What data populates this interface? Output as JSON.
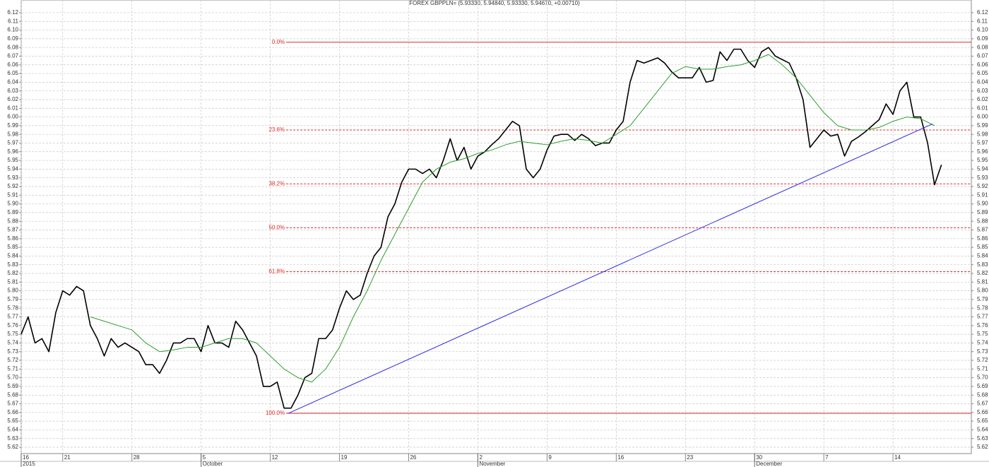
{
  "chart_data": {
    "type": "line",
    "title": "FOREX GBPPLN= (5.93330, 5.94840, 5.93330, 5.94670, +0.00710)",
    "xlim": [
      0,
      68.66
    ],
    "ylim": [
      5.6127,
      6.1346
    ],
    "grid": true,
    "xticks": [
      {
        "value": 0,
        "label": "16"
      },
      {
        "value": 3,
        "label": "21"
      },
      {
        "value": 8,
        "label": "28"
      },
      {
        "value": 13,
        "label": "5"
      },
      {
        "value": 18,
        "label": "12"
      },
      {
        "value": 23,
        "label": "19"
      },
      {
        "value": 28,
        "label": "26"
      },
      {
        "value": 33,
        "label": "2"
      },
      {
        "value": 38,
        "label": "9"
      },
      {
        "value": 43,
        "label": "16"
      },
      {
        "value": 48,
        "label": "23"
      },
      {
        "value": 53,
        "label": "30"
      },
      {
        "value": 58,
        "label": "7"
      },
      {
        "value": 63,
        "label": "14"
      }
    ],
    "xmonths": [
      {
        "value": 0,
        "label": "2015"
      },
      {
        "value": 13,
        "label": "October"
      },
      {
        "value": 33,
        "label": "November"
      },
      {
        "value": 53,
        "label": "December"
      }
    ],
    "yticks": [
      5.62,
      5.63,
      5.64,
      5.65,
      5.66,
      5.67,
      5.68,
      5.69,
      {
        "value": 5.7,
        "label": "5.70"
      },
      5.71,
      5.72,
      5.73,
      5.74,
      5.75,
      5.76,
      5.77,
      5.78,
      5.79,
      {
        "value": 5.8,
        "label": "5.80"
      },
      5.81,
      5.82,
      5.83,
      5.84,
      5.85,
      5.86,
      5.87,
      5.88,
      5.89,
      {
        "value": 5.9,
        "label": "5.90"
      },
      5.91,
      5.92,
      5.93,
      5.94,
      5.95,
      5.96,
      5.97,
      5.98,
      5.99,
      {
        "value": 6.0,
        "label": "6.00"
      },
      6.01,
      6.02,
      6.03,
      6.04,
      6.05,
      6.06,
      6.07,
      6.08,
      6.09,
      {
        "value": 6.1,
        "label": "6.10"
      },
      6.11,
      6.12
    ],
    "series": [
      {
        "color": "#000000",
        "x": [
          0,
          0.5,
          1,
          1.5,
          2,
          2.5,
          3,
          3.5,
          4,
          4.5,
          5,
          5.5,
          6,
          6.5,
          7,
          7.5,
          8,
          8.5,
          9,
          9.5,
          10,
          10.5,
          11,
          11.5,
          12,
          12.5,
          13,
          13.5,
          14,
          14.5,
          15,
          15.5,
          16,
          16.5,
          17,
          17.5,
          18,
          18.5,
          19,
          19.5,
          20,
          20.5,
          21,
          21.5,
          22,
          22.5,
          23,
          23.5,
          24,
          24.5,
          25,
          25.5,
          26,
          26.5,
          27,
          27.5,
          28,
          28.5,
          29,
          29.5,
          30,
          30.5,
          31,
          31.5,
          32,
          32.5,
          33,
          33.5,
          34,
          34.5,
          35,
          35.5,
          36,
          36.5,
          37,
          37.5,
          38,
          38.5,
          39,
          39.5,
          40,
          40.5,
          41,
          41.5,
          42,
          42.5,
          43,
          43.5,
          44,
          44.5,
          45,
          45.5,
          46,
          46.5,
          47,
          47.5,
          48,
          48.5,
          49,
          49.5,
          50,
          50.5,
          51,
          51.5,
          52,
          52.5,
          53,
          53.5,
          54,
          54.5,
          55,
          55.5,
          56,
          56.5,
          57,
          57.5,
          58,
          58.5,
          59,
          59.5,
          60,
          60.5,
          61,
          61.5,
          62,
          62.5,
          63,
          63.5,
          64,
          64.5,
          65,
          65.5,
          66,
          66.5
        ],
        "values": [
          5.75,
          5.77,
          5.74,
          5.745,
          5.73,
          5.775,
          5.8,
          5.795,
          5.805,
          5.8,
          5.76,
          5.745,
          5.725,
          5.745,
          5.735,
          5.74,
          5.735,
          5.73,
          5.715,
          5.715,
          5.705,
          5.72,
          5.74,
          5.74,
          5.745,
          5.745,
          5.73,
          5.76,
          5.74,
          5.74,
          5.735,
          5.765,
          5.755,
          5.74,
          5.725,
          5.69,
          5.69,
          5.695,
          5.665,
          5.665,
          5.68,
          5.7,
          5.705,
          5.745,
          5.745,
          5.755,
          5.78,
          5.8,
          5.79,
          5.795,
          5.82,
          5.84,
          5.85,
          5.885,
          5.9,
          5.925,
          5.94,
          5.94,
          5.935,
          5.94,
          5.93,
          5.95,
          5.975,
          5.95,
          5.965,
          5.94,
          5.955,
          5.96,
          5.968,
          5.975,
          5.985,
          5.995,
          5.99,
          5.94,
          5.93,
          5.94,
          5.962,
          5.978,
          5.98,
          5.98,
          5.973,
          5.98,
          5.975,
          5.967,
          5.97,
          5.97,
          5.985,
          5.995,
          6.04,
          6.065,
          6.062,
          6.065,
          6.068,
          6.062,
          6.052,
          6.045,
          6.045,
          6.045,
          6.057,
          6.04,
          6.042,
          6.075,
          6.065,
          6.078,
          6.078,
          6.065,
          6.057,
          6.075,
          6.08,
          6.07,
          6.066,
          6.062,
          6.045,
          6.02,
          5.965,
          5.975,
          5.985,
          5.978,
          5.98,
          5.955,
          5.972,
          5.977,
          5.983,
          5.99,
          5.997,
          6.015,
          6.003,
          6.03,
          6.04,
          6.0,
          6.0,
          5.97,
          5.922,
          5.945
        ]
      },
      {
        "color": "#2e9e2e",
        "x": [
          5,
          6,
          7,
          8,
          9,
          10,
          11,
          12,
          13,
          14,
          15,
          16,
          17,
          18,
          19,
          20,
          21,
          22,
          23,
          24,
          25,
          26,
          27,
          28,
          29,
          30,
          31,
          32,
          33,
          34,
          35,
          36,
          37,
          38,
          39,
          40,
          41,
          42,
          43,
          44,
          45,
          46,
          47,
          48,
          49,
          50,
          51,
          52,
          53,
          54,
          55,
          56,
          57,
          58,
          59,
          60,
          61,
          62,
          63,
          64,
          65,
          66
        ],
        "values": [
          5.77,
          5.765,
          5.76,
          5.755,
          5.74,
          5.73,
          5.732,
          5.735,
          5.735,
          5.74,
          5.745,
          5.745,
          5.74,
          5.725,
          5.71,
          5.7,
          5.695,
          5.71,
          5.735,
          5.77,
          5.8,
          5.835,
          5.865,
          5.895,
          5.925,
          5.94,
          5.948,
          5.952,
          5.958,
          5.962,
          5.968,
          5.972,
          5.97,
          5.968,
          5.972,
          5.975,
          5.973,
          5.97,
          5.98,
          5.99,
          6.01,
          6.03,
          6.05,
          6.058,
          6.055,
          6.055,
          6.058,
          6.06,
          6.065,
          6.072,
          6.06,
          6.045,
          6.025,
          6.005,
          5.99,
          5.985,
          5.985,
          5.988,
          5.995,
          6.0,
          5.998,
          5.99
        ]
      },
      {
        "color": "#2a2ae0",
        "x": [
          19.3,
          65.85
        ],
        "values": [
          5.659,
          5.992
        ]
      }
    ],
    "fibonacci": {
      "color": "#e02828",
      "start_x": 19.15,
      "levels": [
        {
          "label": "0.0%",
          "value": 6.086,
          "style": "solid"
        },
        {
          "label": "23.6%",
          "value": 5.985,
          "style": "dashed"
        },
        {
          "label": "38.2%",
          "value": 5.923,
          "style": "dashed"
        },
        {
          "label": "50.0%",
          "value": 5.8725,
          "style": "dashed"
        },
        {
          "label": "61.8%",
          "value": 5.822,
          "style": "dashed"
        },
        {
          "label": "100.0%",
          "value": 5.659,
          "style": "solid"
        }
      ]
    }
  }
}
